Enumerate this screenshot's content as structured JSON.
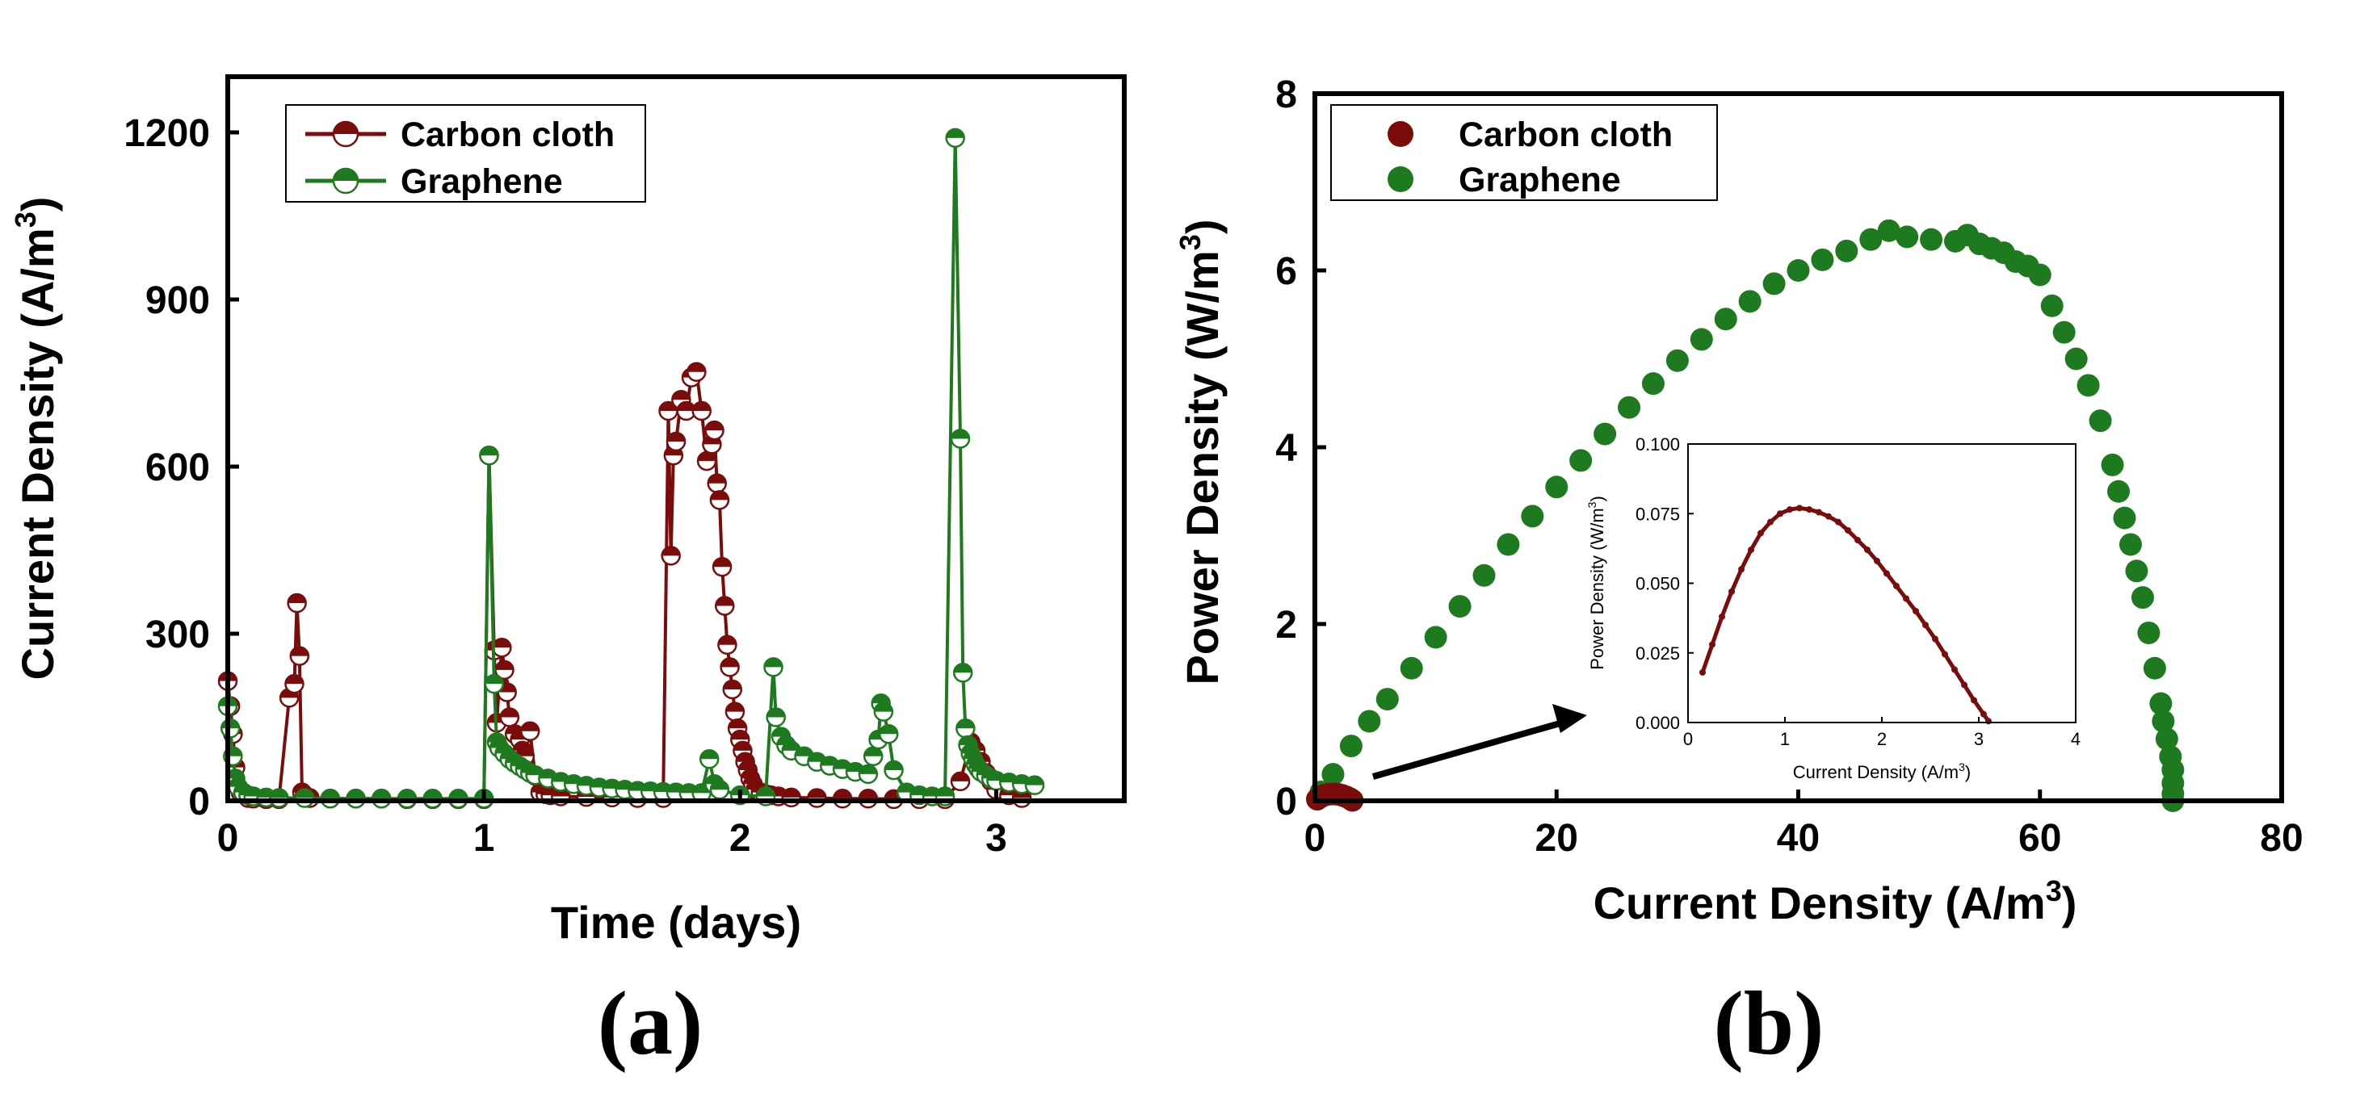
{
  "colors": {
    "carbon": "#7a0c0c",
    "graphene": "#1e7a1e"
  },
  "chart_data": [
    {
      "id": "a",
      "type": "line",
      "panel_label": "(a)",
      "xlabel": "Time (days)",
      "ylabel": "Current Density (A/m",
      "ylabel_sup": "3",
      "ylabel_end": ")",
      "xlim": [
        0,
        3.5
      ],
      "ylim": [
        0,
        1300
      ],
      "xticks": [
        0,
        1,
        2,
        3
      ],
      "yticks": [
        0,
        300,
        600,
        900,
        1200
      ],
      "legend_position": "top-left",
      "series": [
        {
          "name": "Carbon cloth",
          "color": "#7a0c0c",
          "x": [
            0.0,
            0.01,
            0.02,
            0.03,
            0.05,
            0.08,
            0.1,
            0.15,
            0.2,
            0.24,
            0.26,
            0.27,
            0.28,
            0.29,
            0.3,
            0.32,
            0.4,
            0.5,
            0.6,
            0.7,
            0.8,
            0.9,
            1.0,
            1.02,
            1.04,
            1.05,
            1.06,
            1.07,
            1.08,
            1.09,
            1.1,
            1.12,
            1.14,
            1.15,
            1.16,
            1.18,
            1.2,
            1.22,
            1.24,
            1.26,
            1.3,
            1.4,
            1.5,
            1.6,
            1.7,
            1.72,
            1.73,
            1.74,
            1.75,
            1.77,
            1.79,
            1.81,
            1.83,
            1.85,
            1.87,
            1.89,
            1.9,
            1.91,
            1.92,
            1.93,
            1.94,
            1.95,
            1.96,
            1.97,
            1.98,
            1.99,
            2.0,
            2.01,
            2.02,
            2.03,
            2.04,
            2.05,
            2.06,
            2.08,
            2.1,
            2.12,
            2.15,
            2.2,
            2.3,
            2.4,
            2.5,
            2.6,
            2.7,
            2.8,
            2.86,
            2.9,
            2.92,
            2.94,
            2.96,
            2.98,
            3.0,
            3.05,
            3.1
          ],
          "y": [
            215,
            170,
            120,
            60,
            15,
            5,
            4,
            3,
            3,
            185,
            210,
            355,
            260,
            15,
            10,
            5,
            4,
            4,
            4,
            3,
            3,
            3,
            3,
            620,
            270,
            140,
            210,
            275,
            235,
            195,
            150,
            120,
            110,
            90,
            80,
            125,
            45,
            15,
            12,
            10,
            8,
            7,
            6,
            5,
            5,
            700,
            440,
            620,
            645,
            720,
            700,
            760,
            770,
            700,
            610,
            640,
            665,
            570,
            540,
            420,
            350,
            280,
            240,
            200,
            160,
            130,
            110,
            90,
            70,
            55,
            40,
            30,
            20,
            15,
            12,
            10,
            8,
            6,
            5,
            4,
            4,
            3,
            3,
            3,
            35,
            105,
            90,
            70,
            50,
            35,
            20,
            10,
            5
          ]
        },
        {
          "name": "Graphene",
          "color": "#1e7a1e",
          "x": [
            0.0,
            0.01,
            0.02,
            0.03,
            0.04,
            0.06,
            0.08,
            0.1,
            0.15,
            0.2,
            0.3,
            0.4,
            0.5,
            0.6,
            0.7,
            0.8,
            0.9,
            1.0,
            1.02,
            1.04,
            1.05,
            1.06,
            1.08,
            1.1,
            1.12,
            1.14,
            1.16,
            1.18,
            1.2,
            1.25,
            1.3,
            1.35,
            1.4,
            1.45,
            1.5,
            1.55,
            1.6,
            1.65,
            1.7,
            1.75,
            1.8,
            1.85,
            1.88,
            1.9,
            1.92,
            2.0,
            2.1,
            2.13,
            2.14,
            2.16,
            2.18,
            2.2,
            2.25,
            2.3,
            2.35,
            2.4,
            2.45,
            2.5,
            2.52,
            2.54,
            2.55,
            2.56,
            2.58,
            2.6,
            2.65,
            2.7,
            2.75,
            2.8,
            2.84,
            2.86,
            2.87,
            2.88,
            2.89,
            2.9,
            2.91,
            2.92,
            2.93,
            2.94,
            2.96,
            2.98,
            3.0,
            3.05,
            3.1,
            3.15
          ],
          "y": [
            170,
            130,
            80,
            40,
            25,
            15,
            10,
            8,
            6,
            5,
            5,
            4,
            4,
            4,
            4,
            4,
            4,
            4,
            620,
            210,
            105,
            95,
            85,
            75,
            68,
            62,
            56,
            50,
            46,
            40,
            34,
            30,
            27,
            24,
            22,
            20,
            18,
            17,
            16,
            15,
            14,
            14,
            75,
            30,
            20,
            10,
            8,
            240,
            150,
            115,
            100,
            90,
            80,
            70,
            63,
            57,
            52,
            48,
            80,
            110,
            175,
            160,
            120,
            55,
            15,
            10,
            8,
            8,
            1190,
            650,
            230,
            130,
            100,
            85,
            75,
            65,
            58,
            52,
            46,
            40,
            36,
            33,
            30,
            28
          ]
        }
      ]
    },
    {
      "id": "b",
      "type": "scatter",
      "panel_label": "(b)",
      "xlabel": "Current Density (A/m",
      "xlabel_sup": "3",
      "xlabel_end": ")",
      "ylabel": "Power Density (W/m",
      "ylabel_sup": "3",
      "ylabel_end": ")",
      "xlim": [
        0,
        80
      ],
      "ylim": [
        0,
        8
      ],
      "xticks": [
        0,
        20,
        40,
        60,
        80
      ],
      "yticks": [
        0,
        2,
        4,
        6,
        8
      ],
      "legend_position": "top-left",
      "series": [
        {
          "name": "Carbon cloth",
          "color": "#7a0c0c",
          "x": [
            0.2,
            0.5,
            0.8,
            1.1,
            1.4,
            1.7,
            2.0,
            2.3,
            2.6,
            2.9,
            3.1
          ],
          "y": [
            0.018,
            0.045,
            0.065,
            0.074,
            0.077,
            0.076,
            0.071,
            0.06,
            0.045,
            0.025,
            0.005
          ]
        },
        {
          "name": "Graphene",
          "color": "#1e7a1e",
          "x": [
            0.5,
            1.5,
            3,
            4.5,
            6,
            8,
            10,
            12,
            14,
            16,
            18,
            20,
            22,
            24,
            26,
            28,
            30,
            32,
            34,
            36,
            38,
            40,
            42,
            44,
            46,
            47.5,
            49,
            51,
            53,
            54,
            55,
            56,
            57,
            58,
            59,
            60,
            61,
            62,
            63,
            64,
            65,
            66,
            66.5,
            67,
            67.5,
            68,
            68.5,
            69,
            69.5,
            70,
            70.2,
            70.5,
            70.8,
            71,
            71,
            71,
            71
          ],
          "y": [
            0.1,
            0.3,
            0.62,
            0.9,
            1.15,
            1.5,
            1.85,
            2.2,
            2.55,
            2.9,
            3.22,
            3.55,
            3.85,
            4.15,
            4.45,
            4.72,
            4.98,
            5.22,
            5.45,
            5.65,
            5.85,
            6.0,
            6.12,
            6.22,
            6.35,
            6.45,
            6.38,
            6.35,
            6.33,
            6.4,
            6.3,
            6.25,
            6.2,
            6.1,
            6.05,
            5.95,
            5.6,
            5.3,
            5.0,
            4.7,
            4.3,
            3.8,
            3.5,
            3.2,
            2.9,
            2.6,
            2.3,
            1.9,
            1.5,
            1.1,
            0.9,
            0.7,
            0.5,
            0.35,
            0.2,
            0.08,
            0.0
          ]
        }
      ],
      "inset": {
        "xlabel": "Current Density (A/m",
        "xlabel_sup": "3",
        "xlabel_end": ")",
        "ylabel": "Power Density (W/m",
        "ylabel_sup": "3",
        "ylabel_end": ")",
        "xlim": [
          0,
          4
        ],
        "ylim": [
          0,
          0.1
        ],
        "xticks": [
          0,
          1,
          2,
          3,
          4
        ],
        "yticks": [
          "0.000",
          "0.025",
          "0.050",
          "0.075",
          "0.100"
        ],
        "series": [
          {
            "name": "Carbon cloth",
            "color": "#7a0c0c",
            "x": [
              0.15,
              0.25,
              0.35,
              0.45,
              0.55,
              0.65,
              0.75,
              0.85,
              0.95,
              1.05,
              1.15,
              1.25,
              1.35,
              1.45,
              1.55,
              1.65,
              1.75,
              1.85,
              1.95,
              2.05,
              2.15,
              2.25,
              2.35,
              2.45,
              2.55,
              2.65,
              2.75,
              2.85,
              2.95,
              3.05,
              3.1
            ],
            "y": [
              0.018,
              0.028,
              0.038,
              0.047,
              0.055,
              0.062,
              0.068,
              0.072,
              0.075,
              0.0765,
              0.077,
              0.0765,
              0.0755,
              0.074,
              0.072,
              0.069,
              0.0655,
              0.062,
              0.058,
              0.0535,
              0.049,
              0.0445,
              0.04,
              0.035,
              0.03,
              0.0245,
              0.019,
              0.0135,
              0.008,
              0.003,
              0.0005
            ]
          }
        ]
      }
    }
  ]
}
